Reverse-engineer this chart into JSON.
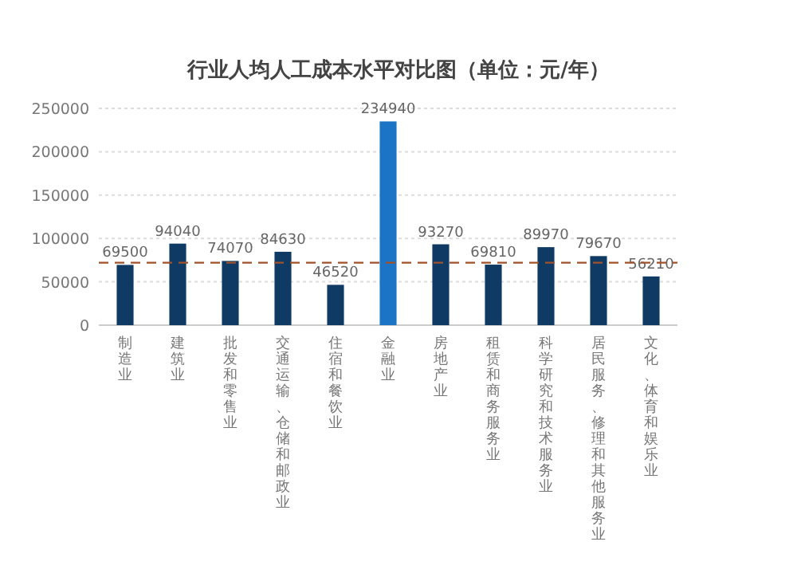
{
  "chart_data": {
    "type": "bar",
    "title": "行业人均人工成本水平对比图（单位：元/年）",
    "categories": [
      "制造业",
      "建筑业",
      "批发和零售业",
      "交通运输、仓储和邮政业",
      "住宿和餐饮业",
      "金融业",
      "房地产业",
      "租赁和商务服务业",
      "科学研究和技术服务业",
      "居民服务、修理和其他服务业",
      "文化、体育和娱乐业"
    ],
    "values": [
      69500,
      94040,
      74070,
      84630,
      46520,
      234940,
      93270,
      69810,
      89970,
      79670,
      56210
    ],
    "colors": [
      "#0f3a63",
      "#0f3a63",
      "#0f3a63",
      "#0f3a63",
      "#0f3a63",
      "#1b74c5",
      "#0f3a63",
      "#0f3a63",
      "#0f3a63",
      "#0f3a63",
      "#0f3a63"
    ],
    "ylim": [
      0,
      250000
    ],
    "yticks": [
      0,
      50000,
      100000,
      150000,
      200000,
      250000
    ],
    "grid": "y",
    "data_labels": true,
    "ref_lines": [
      {
        "axis": "y",
        "value": 72000,
        "color": "#a0522d",
        "line_style": "dashed"
      }
    ]
  }
}
